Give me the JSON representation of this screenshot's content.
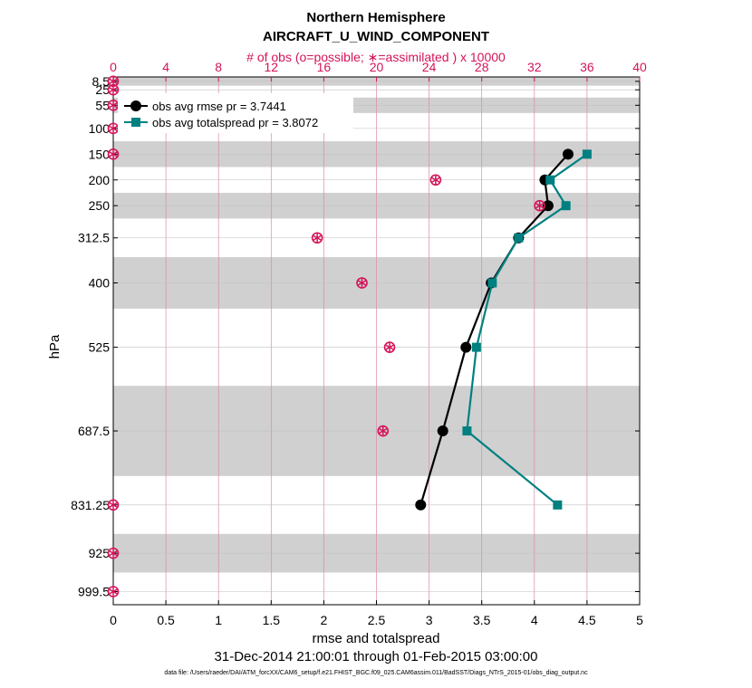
{
  "chart_data": {
    "type": "line",
    "title": "Northern Hemisphere",
    "subtitle": "AIRCRAFT_U_WIND_COMPONENT",
    "top_axis_label": "# of obs (o=possible; ∗=assimilated ) x 10000",
    "xlabel": "rmse and totalspread",
    "ylabel": "hPa",
    "date_range": "31-Dec-2014 21:00:01 through 01-Feb-2015 03:00:00",
    "data_file": "data file: /Users/raeder/DAI/ATM_forcXX/CAM6_setup/f.e21.FHIST_BGC.f09_025.CAM6assim.011/BadSST/Diags_NTrS_2015-01/obs_diag_output.nc",
    "xlim": [
      0,
      5
    ],
    "xticks": [
      "0",
      "0.5",
      "1",
      "1.5",
      "2",
      "2.5",
      "3",
      "3.5",
      "4",
      "4.5",
      "5"
    ],
    "top_xlim": [
      0,
      40
    ],
    "top_xticks": [
      "0",
      "4",
      "8",
      "12",
      "16",
      "20",
      "24",
      "28",
      "32",
      "36",
      "40"
    ],
    "ylim": [
      1025,
      0
    ],
    "y_levels": [
      8.5,
      25,
      55,
      100,
      150,
      200,
      250,
      312.5,
      400,
      525,
      687.5,
      831.25,
      925,
      999.5
    ],
    "y_tick_labels": [
      "8.5",
      "25",
      "55",
      "100",
      "150",
      "200",
      "250",
      "312.5",
      "400",
      "525",
      "687.5",
      "831.25",
      "925",
      "999.5"
    ],
    "layer_edges": [
      0,
      17,
      40,
      70,
      125,
      175,
      225,
      275,
      350,
      450,
      600,
      775,
      887.5,
      962.5,
      1025
    ],
    "series": [
      {
        "name": "obs avg rmse",
        "legend": "obs avg rmse   pr = 3.7441",
        "color": "#000000",
        "marker": "circle",
        "levels": [
          150,
          200,
          250,
          312.5,
          400,
          525,
          687.5,
          831.25
        ],
        "values": [
          4.32,
          4.1,
          4.13,
          3.85,
          3.59,
          3.35,
          3.13,
          2.92
        ]
      },
      {
        "name": "obs avg totalspread",
        "legend": "obs avg totalspread   pr = 3.8072",
        "color": "#008080",
        "marker": "square",
        "levels": [
          150,
          200,
          250,
          312.5,
          400,
          525,
          687.5,
          831.25
        ],
        "values": [
          4.5,
          4.15,
          4.3,
          3.85,
          3.6,
          3.45,
          3.36,
          4.22
        ]
      }
    ],
    "obs_counts": {
      "levels": [
        8.5,
        25,
        55,
        100,
        150,
        200,
        250,
        312.5,
        400,
        525,
        687.5,
        831.25,
        925,
        999.5
      ],
      "possible": [
        0,
        0,
        0,
        0,
        0,
        24.5,
        32.4,
        15.5,
        18.9,
        21,
        20.5,
        0,
        0,
        0
      ],
      "assimilated": [
        0,
        0,
        0,
        0,
        0,
        24.5,
        32.4,
        15.5,
        18.9,
        21,
        20.5,
        0,
        0,
        0
      ],
      "color": "#d4145a"
    }
  }
}
